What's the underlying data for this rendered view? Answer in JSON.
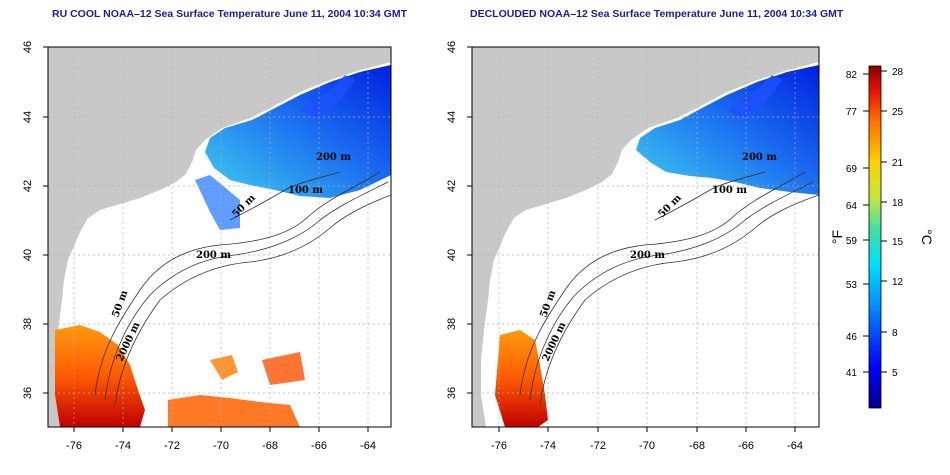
{
  "panels": [
    {
      "id": "left",
      "title": "RU COOL NOAA–12 Sea Surface Temperature June 11, 2004 10:34 GMT",
      "contour_labels": [
        "100 m",
        "50 m",
        "200 m",
        "50 m",
        "2000 m",
        "200 m"
      ]
    },
    {
      "id": "right",
      "title": "DECLOUDED NOAA–12 Sea Surface Temperature June 11, 2004 10:34 GMT",
      "contour_labels": [
        "100 m",
        "50 m",
        "200 m",
        "50 m",
        "2000 m",
        "200 m"
      ]
    }
  ],
  "x_ticks": [
    "-76",
    "-74",
    "-72",
    "-70",
    "-68",
    "-66",
    "-64"
  ],
  "y_ticks": [
    "46",
    "44",
    "42",
    "40",
    "38",
    "36"
  ],
  "colorbar": {
    "fahrenheit_ticks": [
      "82",
      "77",
      "69",
      "64",
      "59",
      "53",
      "46",
      "41"
    ],
    "celsius_ticks": [
      "28",
      "25",
      "21",
      "18",
      "15",
      "12",
      "8",
      "5"
    ],
    "unit_f": "°F",
    "unit_c": "°C"
  },
  "colors": {
    "land": "#c8c8c8",
    "cloud": "#ffffff",
    "title": "#1a1aa8",
    "grid": "#b0b0b0"
  }
}
